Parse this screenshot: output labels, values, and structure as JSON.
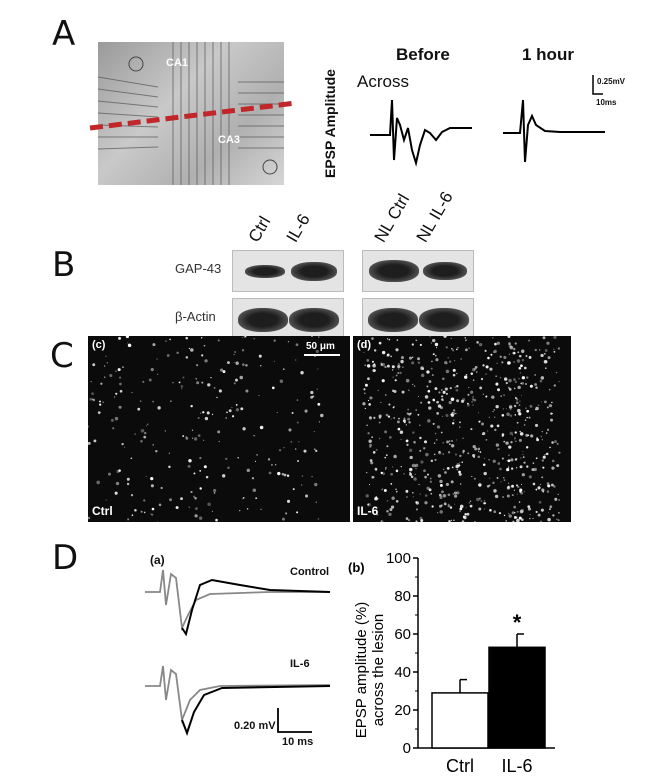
{
  "panels": {
    "A": {
      "label": "A",
      "image_labels": [
        "CA1",
        "CA3"
      ],
      "y_label": "EPSP Amplitude",
      "columns": [
        "Before",
        "1 hour"
      ],
      "row_label": "Across",
      "scale_bar": {
        "voltage": "0.25mV",
        "time": "10ms"
      },
      "lesion_line_color": "#c0262a"
    },
    "B": {
      "label": "B",
      "lanes_left": [
        "Ctrl",
        "IL-6"
      ],
      "lanes_right": [
        "NL Ctrl",
        "NL IL-6"
      ],
      "rows": [
        "GAP-43",
        "β-Actin"
      ]
    },
    "C": {
      "label": "C",
      "left": {
        "tag": "(c)",
        "condition": "Ctrl",
        "scale_bar": "50 μm"
      },
      "right": {
        "tag": "(d)",
        "condition": "IL-6"
      }
    },
    "D": {
      "label": "D",
      "traces": {
        "tag": "(a)",
        "labels": [
          "Control",
          "IL-6"
        ],
        "scale_bar": {
          "voltage": "0.20 mV",
          "time": "10 ms"
        }
      }
    }
  },
  "chart_data": {
    "type": "bar",
    "tag": "(b)",
    "categories": [
      "Ctrl",
      "IL-6"
    ],
    "values": [
      29,
      53
    ],
    "errors": [
      7,
      7
    ],
    "colors": [
      "#ffffff",
      "#000000"
    ],
    "significance": [
      "",
      "*"
    ],
    "ylabel": "EPSP amplitude (%) across the lesion",
    "ylabel_lines": [
      "EPSP amplitude (%)",
      "across the lesion"
    ],
    "ylim": [
      0,
      100
    ],
    "yticks": [
      "0",
      "20",
      "40",
      "60",
      "80",
      "100"
    ]
  }
}
